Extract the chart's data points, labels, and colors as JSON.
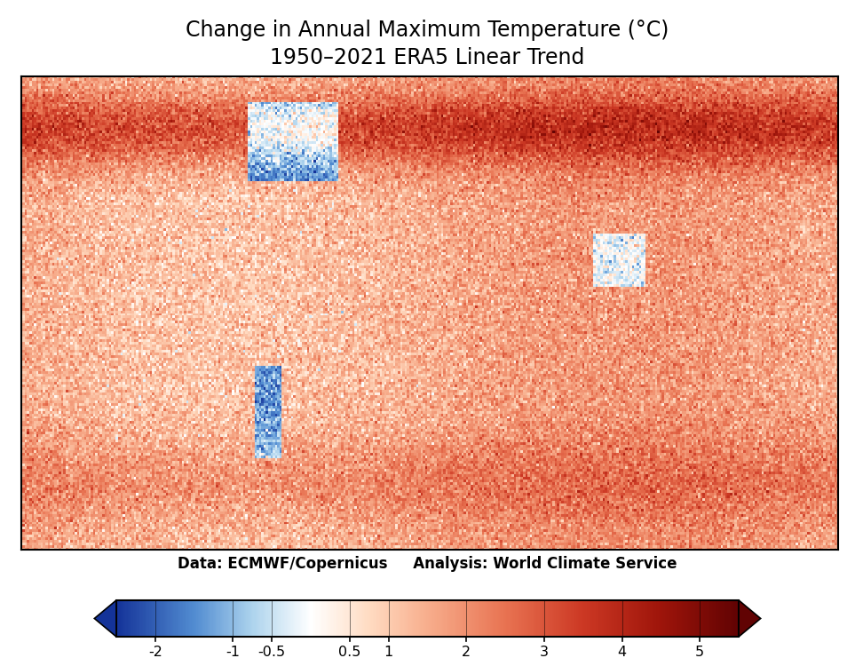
{
  "title_line1": "Change in Annual Maximum Temperature (°C)",
  "title_line2": "1950–2021 ERA5 Linear Trend",
  "title_fontsize": 17,
  "subtitle_fontsize": 17,
  "caption": "Data: ECMWF/Copernicus     Analysis: World Climate Service",
  "caption_fontsize": 12,
  "colorbar_ticks": [
    -2,
    -1,
    -0.5,
    0.5,
    1,
    2,
    3,
    4,
    5
  ],
  "colorbar_tick_labels": [
    "-2",
    "-1",
    "-0.5",
    "0.5",
    "1",
    "2",
    "3",
    "4",
    "5"
  ],
  "colorbar_vmin": -2.5,
  "colorbar_vmax": 5.5,
  "background_color": "#ffffff",
  "fig_width": 9.63,
  "fig_height": 7.5,
  "map_border_color": "#000000",
  "map_border_linewidth": 1.5
}
